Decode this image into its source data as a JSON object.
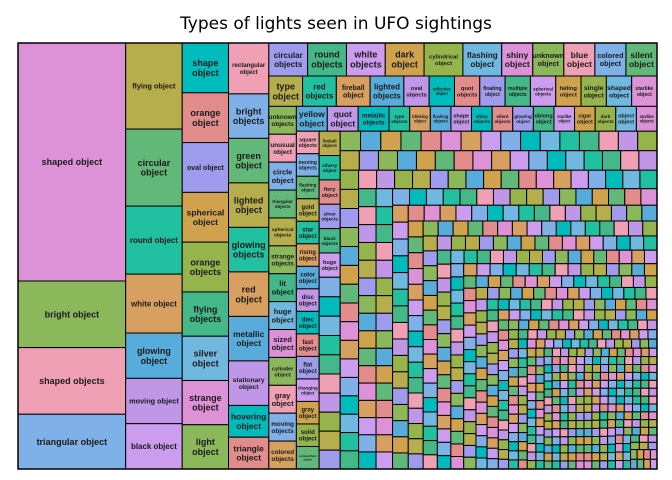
{
  "chart_data": {
    "type": "treemap",
    "title": "Types of lights seen in UFO sightings",
    "legend": "none",
    "colors": [
      "#dd92d8",
      "#8cb85c",
      "#efa0b5",
      "#7fb1e8",
      "#62b878",
      "#b6ad4c",
      "#20c0a0",
      "#d8a060",
      "#58acdc",
      "#c096e6",
      "#00bbbb",
      "#e28c8c",
      "#9f9cee",
      "#44b888",
      "#cc9cee",
      "#d0a24e",
      "#96b44c",
      "#70b8e0"
    ],
    "items": [
      {
        "label": "shaped object",
        "value": 100
      },
      {
        "label": "bright object",
        "value": 28
      },
      {
        "label": "shaped objects",
        "value": 28
      },
      {
        "label": "triangular object",
        "value": 23
      },
      {
        "label": "circular object",
        "value": 17
      },
      {
        "label": "flying object",
        "value": 19
      },
      {
        "label": "round object",
        "value": 15
      },
      {
        "label": "white object",
        "value": 13
      },
      {
        "label": "glowing object",
        "value": 10
      },
      {
        "label": "moving object",
        "value": 10
      },
      {
        "label": "shape object",
        "value": 9
      },
      {
        "label": "orange object",
        "value": 9
      },
      {
        "label": "oval object",
        "value": 9
      },
      {
        "label": "flying objects",
        "value": 8
      },
      {
        "label": "black object",
        "value": 10
      },
      {
        "label": "spherical object",
        "value": 9
      },
      {
        "label": "orange objects",
        "value": 9
      },
      {
        "label": "silver object",
        "value": 8
      },
      {
        "label": "strange object",
        "value": 8
      },
      {
        "label": "light object",
        "value": 8
      },
      {
        "label": "rectangular object",
        "value": 8
      },
      {
        "label": "bright objects",
        "value": 7
      },
      {
        "label": "green object",
        "value": 7
      },
      {
        "label": "lighted object",
        "value": 7
      },
      {
        "label": "glowing objects",
        "value": 7
      },
      {
        "label": "red object",
        "value": 7
      },
      {
        "label": "metallic object",
        "value": 7
      },
      {
        "label": "stationary object",
        "value": 7
      },
      {
        "label": "hovering object",
        "value": 5
      },
      {
        "label": "triangle object",
        "value": 5
      },
      {
        "label": "circular objects",
        "value": 5
      },
      {
        "label": "round objects",
        "value": 5
      },
      {
        "label": "white objects",
        "value": 5
      },
      {
        "label": "dark object",
        "value": 5
      },
      {
        "label": "cylindrical object",
        "value": 5
      },
      {
        "label": "flashing object",
        "value": 5
      },
      {
        "label": "shiny object",
        "value": 4
      },
      {
        "label": "unknown object",
        "value": 4
      },
      {
        "label": "blue object",
        "value": 4
      },
      {
        "label": "colored object",
        "value": 4
      },
      {
        "label": "silent object",
        "value": 4
      },
      {
        "label": "type object",
        "value": 4
      },
      {
        "label": "red objects",
        "value": 4
      },
      {
        "label": "fireball object",
        "value": 4
      },
      {
        "label": "lighted objects",
        "value": 4
      },
      {
        "label": "oval objects",
        "value": 3
      },
      {
        "label": "reflective object",
        "value": 3
      },
      {
        "label": "quot objects",
        "value": 3
      },
      {
        "label": "floating object",
        "value": 3
      },
      {
        "label": "multiple objects",
        "value": 3
      },
      {
        "label": "spherical objects",
        "value": 3
      },
      {
        "label": "falling object",
        "value": 3
      },
      {
        "label": "single object",
        "value": 3
      },
      {
        "label": "shaped object",
        "value": 3
      },
      {
        "label": "starlike object",
        "value": 3
      },
      {
        "label": "unknown objects",
        "value": 3
      },
      {
        "label": "unusual object",
        "value": 3
      },
      {
        "label": "circle object",
        "value": 3
      },
      {
        "label": "triangular objects",
        "value": 3
      },
      {
        "label": "spherical objects",
        "value": 3
      },
      {
        "label": "type objects",
        "value": 2
      },
      {
        "label": "blinking object",
        "value": 2
      },
      {
        "label": "flashing objects",
        "value": 2
      },
      {
        "label": "shape object",
        "value": 2
      },
      {
        "label": "shiny objects",
        "value": 2
      },
      {
        "label": "silent objects",
        "value": 2
      },
      {
        "label": "glowing object",
        "value": 2
      },
      {
        "label": "oblong object",
        "value": 2
      },
      {
        "label": "starlike object",
        "value": 2
      },
      {
        "label": "cigar object",
        "value": 2
      },
      {
        "label": "dark objects",
        "value": 2
      },
      {
        "label": "object object",
        "value": 2
      },
      {
        "label": "starlike objects",
        "value": 2
      },
      {
        "label": "strange objects",
        "value": 3
      },
      {
        "label": "square objects",
        "value": 2
      },
      {
        "label": "moving objects",
        "value": 2
      },
      {
        "label": "flashing object",
        "value": 2
      },
      {
        "label": "gold object",
        "value": 2
      },
      {
        "label": "star object",
        "value": 2
      },
      {
        "label": "rising object",
        "value": 2
      },
      {
        "label": "color object",
        "value": 2
      },
      {
        "label": "disc object",
        "value": 2
      },
      {
        "label": "diec object",
        "value": 2
      },
      {
        "label": "fast object",
        "value": 2
      },
      {
        "label": "flat object",
        "value": 2
      },
      {
        "label": "lit object",
        "value": 3
      },
      {
        "label": "changing object",
        "value": 2
      },
      {
        "label": "gray object",
        "value": 2
      },
      {
        "label": "solid object",
        "value": 2
      },
      {
        "label": "huge object",
        "value": 3
      },
      {
        "label": "sized object",
        "value": 3
      },
      {
        "label": "cylinder object",
        "value": 3
      },
      {
        "label": "gray object",
        "value": 3
      },
      {
        "label": "moving objects",
        "value": 3
      },
      {
        "label": "unidentified object",
        "value": 2
      },
      {
        "label": "fireball objects",
        "value": 2
      },
      {
        "label": "silvery object",
        "value": 2
      },
      {
        "label": "colored objects",
        "value": 3
      },
      {
        "label": "yellow object",
        "value": 3
      },
      {
        "label": "quot object",
        "value": 3
      },
      {
        "label": "metallic objects",
        "value": 3
      },
      {
        "label": "fiery object",
        "value": 2
      },
      {
        "label": "silver objects",
        "value": 2
      },
      {
        "label": "black objects",
        "value": 2
      },
      {
        "label": "huge object",
        "value": 2
      }
    ]
  }
}
